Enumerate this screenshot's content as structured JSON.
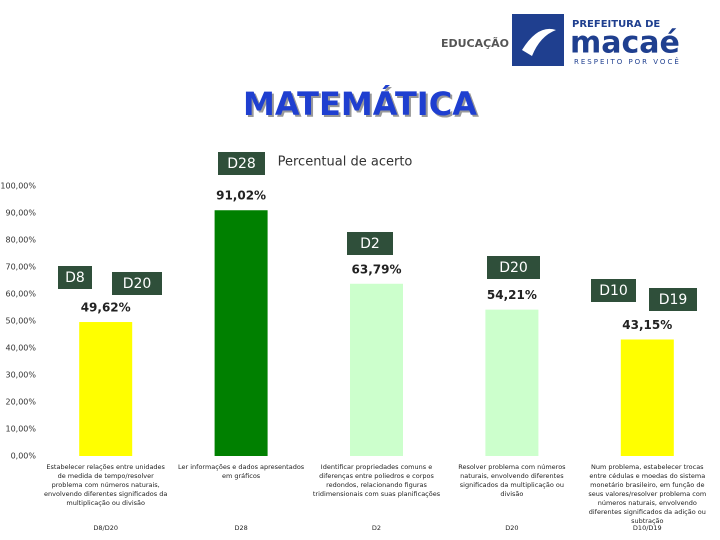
{
  "logo": {
    "department": "EDUCAÇÃO",
    "top": "PREFEITURA DE",
    "name": "macaé",
    "tagline": "RESPEITO POR VOCÊ"
  },
  "chart_data": {
    "type": "bar",
    "title": "MATEMÁTICA",
    "subtitle": "Percentual de acerto",
    "categories": [
      "Estabelecer relações entre unidades de medida de tempo/resolver problema com números naturais, envolvendo diferentes significados da multiplicação ou divisão",
      "Ler informações e dados apresentados em gráficos",
      "Identificar propriedades comuns e diferenças entre poliedros e corpos redondos, relacionando figuras tridimensionais com suas planificações",
      "Resolver problema com números naturais, envolvendo diferentes significados da multiplicação ou divisão",
      "Num problema, estabelecer trocas entre cédulas e moedas do sistema monetário brasileiro, em função de seus valores/resolver problema com números naturais, envolvendo diferentes significados da adição ou subtração"
    ],
    "category_codes": [
      "D8/D20",
      "D28",
      "D2",
      "D20",
      "D10/D19"
    ],
    "values": [
      49.62,
      91.02,
      63.79,
      54.21,
      43.15
    ],
    "value_labels": [
      "49,62%",
      "91,02%",
      "63,79%",
      "54,21%",
      "43,15%"
    ],
    "colors": [
      "#ffff00",
      "#008000",
      "#ccffcc",
      "#ccffcc",
      "#ffff00"
    ],
    "annotations": [
      "D28",
      "D8",
      "D20",
      "D2",
      "D20",
      "D10",
      "D19"
    ],
    "ylim": [
      0,
      100
    ],
    "yticks": [
      {
        "value": 0,
        "label": "0,00%"
      },
      {
        "value": 10,
        "label": "10,00%"
      },
      {
        "value": 20,
        "label": "20,00%"
      },
      {
        "value": 30,
        "label": "30,00%"
      },
      {
        "value": 40,
        "label": "40,00%"
      },
      {
        "value": 50,
        "label": "50,00%"
      },
      {
        "value": 60,
        "label": "60,00%"
      },
      {
        "value": 70,
        "label": "70,00%"
      },
      {
        "value": 80,
        "label": "80,00%"
      },
      {
        "value": 90,
        "label": "90,00%"
      },
      {
        "value": 100,
        "label": "100,00%"
      }
    ]
  }
}
